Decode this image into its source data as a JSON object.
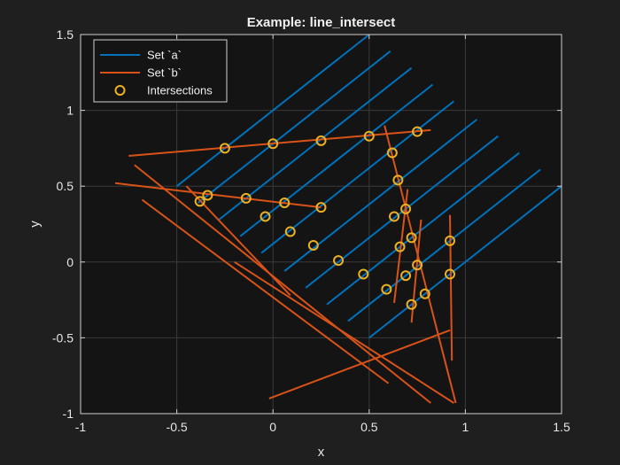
{
  "chart_data": {
    "type": "line",
    "title": "Example: line_intersect",
    "xlabel": "x",
    "ylabel": "y",
    "xlim": [
      -1,
      1.5
    ],
    "ylim": [
      -1,
      1.5
    ],
    "x_ticks": [
      "-1",
      "-0.5",
      "0",
      "0.5",
      "1",
      "1.5"
    ],
    "y_ticks": [
      "-1",
      "-0.5",
      "0",
      "0.5",
      "1",
      "1.5"
    ],
    "grid": true,
    "legend_position": "top-left",
    "colors": {
      "background": "#1f1f1f",
      "axes_background": "#141414",
      "axis": "#cfcfcf",
      "grid": "#3a3a3a",
      "series_a": "#0072bd",
      "series_b": "#d95319",
      "intersections": "#edb120"
    },
    "legend": [
      {
        "label": "Set `a`",
        "marker": "line",
        "color": "#0072bd"
      },
      {
        "label": "Set `b`",
        "marker": "line",
        "color": "#d95319"
      },
      {
        "label": "Intersections",
        "marker": "circle",
        "color": "#edb120"
      }
    ],
    "series": [
      {
        "name": "Set `a`",
        "segments": [
          [
            [
              -0.5,
              0.5
            ],
            [
              0.5,
              1.5
            ]
          ],
          [
            [
              -0.39,
              0.39
            ],
            [
              0.61,
              1.39
            ]
          ],
          [
            [
              -0.28,
              0.28
            ],
            [
              0.72,
              1.28
            ]
          ],
          [
            [
              -0.17,
              0.17
            ],
            [
              0.83,
              1.17
            ]
          ],
          [
            [
              -0.06,
              0.06
            ],
            [
              0.94,
              1.06
            ]
          ],
          [
            [
              0.06,
              -0.06
            ],
            [
              1.06,
              0.94
            ]
          ],
          [
            [
              0.17,
              -0.17
            ],
            [
              1.17,
              0.83
            ]
          ],
          [
            [
              0.28,
              -0.28
            ],
            [
              1.28,
              0.72
            ]
          ],
          [
            [
              0.39,
              -0.39
            ],
            [
              1.39,
              0.61
            ]
          ],
          [
            [
              0.5,
              -0.5
            ],
            [
              1.5,
              0.5
            ]
          ]
        ]
      },
      {
        "name": "Set `b`",
        "segments": [
          [
            [
              -0.75,
              0.7
            ],
            [
              0.82,
              0.87
            ]
          ],
          [
            [
              -0.82,
              0.52
            ],
            [
              0.25,
              0.36
            ]
          ],
          [
            [
              -0.72,
              0.64
            ],
            [
              0.82,
              -0.93
            ]
          ],
          [
            [
              -0.68,
              0.41
            ],
            [
              0.6,
              -0.8
            ]
          ],
          [
            [
              -0.45,
              0.5
            ],
            [
              0.09,
              -0.22
            ]
          ],
          [
            [
              -0.2,
              0.0
            ],
            [
              0.94,
              -0.93
            ]
          ],
          [
            [
              -0.02,
              -0.9
            ],
            [
              0.92,
              -0.45
            ]
          ],
          [
            [
              0.58,
              0.9
            ],
            [
              0.95,
              -0.93
            ]
          ],
          [
            [
              0.7,
              0.48
            ],
            [
              0.63,
              -0.27
            ]
          ],
          [
            [
              0.77,
              0.28
            ],
            [
              0.72,
              -0.4
            ]
          ],
          [
            [
              0.92,
              0.31
            ],
            [
              0.93,
              -0.65
            ]
          ]
        ]
      }
    ],
    "intersections": [
      [
        -0.25,
        0.75
      ],
      [
        0.0,
        0.78
      ],
      [
        0.25,
        0.8
      ],
      [
        0.5,
        0.83
      ],
      [
        0.75,
        0.86
      ],
      [
        -0.38,
        0.4
      ],
      [
        -0.34,
        0.44
      ],
      [
        -0.14,
        0.42
      ],
      [
        0.06,
        0.39
      ],
      [
        0.25,
        0.36
      ],
      [
        -0.04,
        0.3
      ],
      [
        0.09,
        0.2
      ],
      [
        0.21,
        0.11
      ],
      [
        0.34,
        0.01
      ],
      [
        0.47,
        -0.08
      ],
      [
        0.59,
        -0.18
      ],
      [
        0.72,
        -0.28
      ],
      [
        0.62,
        0.72
      ],
      [
        0.65,
        0.54
      ],
      [
        0.69,
        0.35
      ],
      [
        0.63,
        0.3
      ],
      [
        0.72,
        0.16
      ],
      [
        0.66,
        0.1
      ],
      [
        0.75,
        -0.02
      ],
      [
        0.69,
        -0.09
      ],
      [
        0.79,
        -0.21
      ],
      [
        0.92,
        0.14
      ],
      [
        0.92,
        -0.08
      ]
    ]
  }
}
